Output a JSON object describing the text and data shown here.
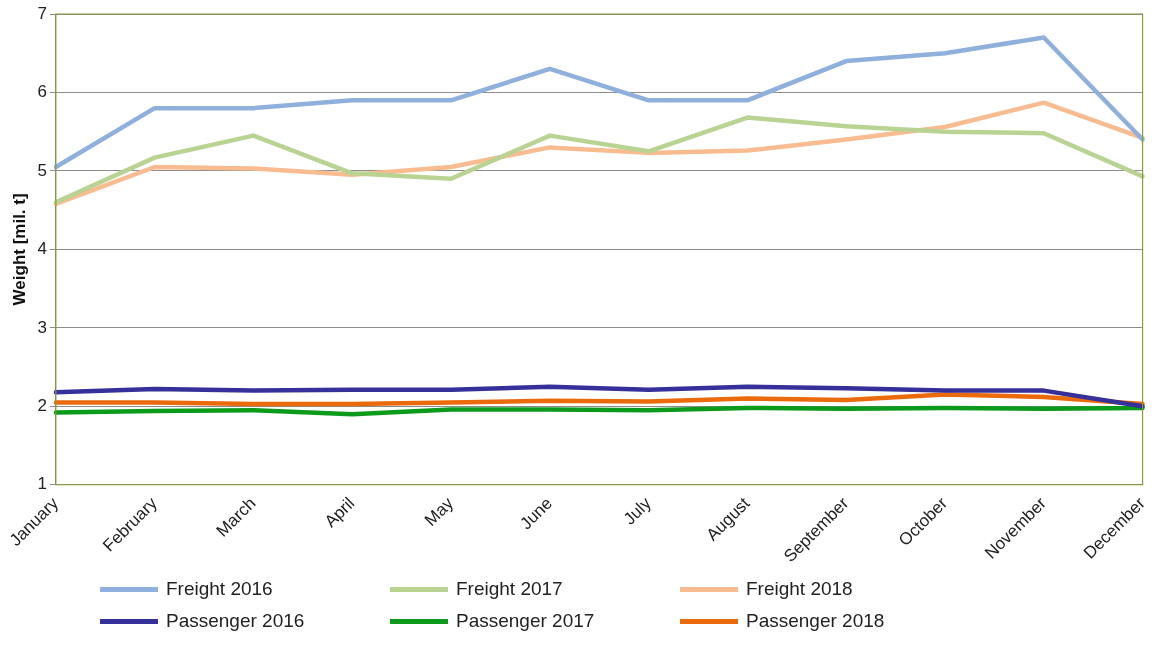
{
  "chart_data": {
    "type": "line",
    "ylabel": "Weight [mil. t]",
    "categories": [
      "January",
      "February",
      "March",
      "April",
      "May",
      "June",
      "July",
      "August",
      "September",
      "October",
      "November",
      "December"
    ],
    "series": [
      {
        "name": "Freight 2016",
        "color": "#8fb0dd",
        "values": [
          5.05,
          5.8,
          5.8,
          5.9,
          5.9,
          6.3,
          5.9,
          5.9,
          6.4,
          6.5,
          6.7,
          5.4
        ]
      },
      {
        "name": "Freight 2017",
        "color": "#b9d393",
        "values": [
          4.6,
          5.17,
          5.45,
          4.97,
          4.9,
          5.45,
          5.25,
          5.68,
          5.57,
          5.5,
          5.48,
          4.93
        ]
      },
      {
        "name": "Freight 2018",
        "color": "#f8bc90",
        "values": [
          4.58,
          5.05,
          5.03,
          4.95,
          5.05,
          5.3,
          5.23,
          5.26,
          5.4,
          5.56,
          5.87,
          5.42
        ]
      },
      {
        "name": "Passenger 2016",
        "color": "#35309a",
        "values": [
          2.18,
          2.22,
          2.2,
          2.21,
          2.21,
          2.25,
          2.21,
          2.25,
          2.23,
          2.2,
          2.2,
          2.0
        ]
      },
      {
        "name": "Passenger 2017",
        "color": "#0c9a1c",
        "values": [
          1.92,
          1.94,
          1.95,
          1.9,
          1.96,
          1.96,
          1.95,
          1.98,
          1.97,
          1.98,
          1.97,
          1.98
        ]
      },
      {
        "name": "Passenger 2018",
        "color": "#ea6a0c",
        "values": [
          2.05,
          2.05,
          2.03,
          2.03,
          2.05,
          2.07,
          2.06,
          2.1,
          2.08,
          2.15,
          2.12,
          2.03
        ]
      }
    ],
    "ylim": [
      1,
      7
    ],
    "yticks": [
      1,
      2,
      3,
      4,
      5,
      6,
      7
    ],
    "grid": "y",
    "legend": "bottom",
    "marker": "none",
    "line_style": "solid"
  }
}
